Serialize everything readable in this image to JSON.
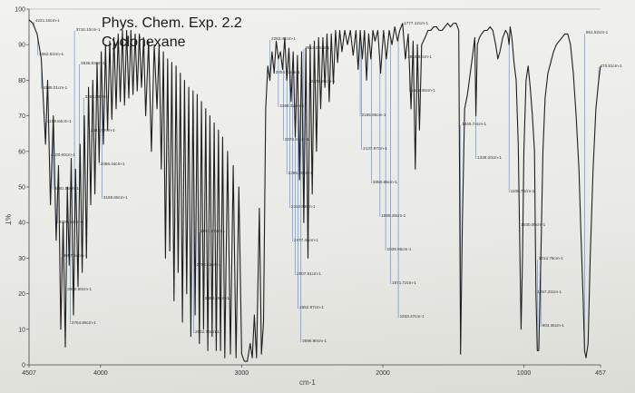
{
  "chart_data": {
    "type": "line",
    "title": "Phys. Chem. Exp. 2.2",
    "subtitle": "Cyclohexane",
    "xlabel": "cm-1",
    "ylabel": "%T",
    "xlim": [
      4507,
      457
    ],
    "ylim": [
      0,
      100
    ],
    "grid": false,
    "y_ticks": [
      "0",
      "10",
      "20",
      "30",
      "40",
      "50",
      "60",
      "70",
      "80",
      "90",
      "100"
    ],
    "x_ticks": [
      {
        "v": 4507,
        "label": "4507"
      },
      {
        "v": 4000,
        "label": "4000"
      },
      {
        "v": 3000,
        "label": "3000"
      },
      {
        "v": 2000,
        "label": "2000"
      },
      {
        "v": 1000,
        "label": "1000"
      },
      {
        "v": 457,
        "label": "457"
      }
    ],
    "series": [
      {
        "color": "#1f1f1f",
        "points": [
          [
            4507,
            97
          ],
          [
            4480,
            96
          ],
          [
            4450,
            93
          ],
          [
            4420,
            86
          ],
          [
            4390,
            62
          ],
          [
            4375,
            80
          ],
          [
            4355,
            45
          ],
          [
            4335,
            70
          ],
          [
            4315,
            35
          ],
          [
            4298,
            56
          ],
          [
            4282,
            10
          ],
          [
            4265,
            40
          ],
          [
            4250,
            5
          ],
          [
            4236,
            50
          ],
          [
            4222,
            28
          ],
          [
            4208,
            58
          ],
          [
            4192,
            14
          ],
          [
            4177,
            55
          ],
          [
            4160,
            22
          ],
          [
            4145,
            62
          ],
          [
            4130,
            26
          ],
          [
            4115,
            70
          ],
          [
            4100,
            30
          ],
          [
            4085,
            78
          ],
          [
            4070,
            45
          ],
          [
            4055,
            80
          ],
          [
            4040,
            48
          ],
          [
            4025,
            85
          ],
          [
            4010,
            57
          ],
          [
            3995,
            88
          ],
          [
            3980,
            62
          ],
          [
            3965,
            90
          ],
          [
            3950,
            66
          ],
          [
            3935,
            91
          ],
          [
            3920,
            69
          ],
          [
            3905,
            92
          ],
          [
            3890,
            72
          ],
          [
            3875,
            93
          ],
          [
            3860,
            74
          ],
          [
            3845,
            94
          ],
          [
            3830,
            73
          ],
          [
            3815,
            94
          ],
          [
            3800,
            75
          ],
          [
            3785,
            94
          ],
          [
            3770,
            76
          ],
          [
            3755,
            93
          ],
          [
            3740,
            77
          ],
          [
            3725,
            93
          ],
          [
            3710,
            78
          ],
          [
            3695,
            92
          ],
          [
            3680,
            70
          ],
          [
            3660,
            91
          ],
          [
            3640,
            60
          ],
          [
            3620,
            90
          ],
          [
            3600,
            72
          ],
          [
            3585,
            90
          ],
          [
            3570,
            55
          ],
          [
            3555,
            88
          ],
          [
            3540,
            30
          ],
          [
            3525,
            86
          ],
          [
            3510,
            32
          ],
          [
            3495,
            85
          ],
          [
            3480,
            18
          ],
          [
            3465,
            84
          ],
          [
            3450,
            26
          ],
          [
            3435,
            82
          ],
          [
            3420,
            12
          ],
          [
            3405,
            80
          ],
          [
            3390,
            20
          ],
          [
            3375,
            78
          ],
          [
            3360,
            8
          ],
          [
            3345,
            77
          ],
          [
            3330,
            14
          ],
          [
            3315,
            76
          ],
          [
            3300,
            6
          ],
          [
            3285,
            74
          ],
          [
            3270,
            10
          ],
          [
            3255,
            72
          ],
          [
            3240,
            4
          ],
          [
            3225,
            70
          ],
          [
            3210,
            8
          ],
          [
            3195,
            68
          ],
          [
            3180,
            4
          ],
          [
            3165,
            66
          ],
          [
            3150,
            4
          ],
          [
            3135,
            64
          ],
          [
            3120,
            2
          ],
          [
            3100,
            60
          ],
          [
            3080,
            3
          ],
          [
            3060,
            56
          ],
          [
            3040,
            2
          ],
          [
            3020,
            50
          ],
          [
            3000,
            3
          ],
          [
            2980,
            1
          ],
          [
            2960,
            1
          ],
          [
            2940,
            6
          ],
          [
            2925,
            2
          ],
          [
            2910,
            14
          ],
          [
            2895,
            2
          ],
          [
            2875,
            44
          ],
          [
            2860,
            3
          ],
          [
            2845,
            12
          ],
          [
            2830,
            72
          ],
          [
            2815,
            84
          ],
          [
            2800,
            80
          ],
          [
            2785,
            88
          ],
          [
            2770,
            82
          ],
          [
            2755,
            91
          ],
          [
            2740,
            86
          ],
          [
            2725,
            88
          ],
          [
            2710,
            83
          ],
          [
            2695,
            92
          ],
          [
            2680,
            80
          ],
          [
            2665,
            89
          ],
          [
            2650,
            74
          ],
          [
            2635,
            88
          ],
          [
            2620,
            64
          ],
          [
            2605,
            87
          ],
          [
            2590,
            52
          ],
          [
            2575,
            88
          ],
          [
            2560,
            40
          ],
          [
            2545,
            89
          ],
          [
            2530,
            30
          ],
          [
            2515,
            90
          ],
          [
            2500,
            48
          ],
          [
            2485,
            91
          ],
          [
            2470,
            60
          ],
          [
            2455,
            92
          ],
          [
            2440,
            72
          ],
          [
            2425,
            92
          ],
          [
            2410,
            78
          ],
          [
            2395,
            93
          ],
          [
            2380,
            74
          ],
          [
            2365,
            93
          ],
          [
            2350,
            79
          ],
          [
            2335,
            94
          ],
          [
            2320,
            85
          ],
          [
            2305,
            94
          ],
          [
            2290,
            88
          ],
          [
            2270,
            94
          ],
          [
            2250,
            90
          ],
          [
            2230,
            94
          ],
          [
            2210,
            87
          ],
          [
            2190,
            94
          ],
          [
            2175,
            83
          ],
          [
            2160,
            94
          ],
          [
            2145,
            86
          ],
          [
            2130,
            94
          ],
          [
            2115,
            80
          ],
          [
            2100,
            93
          ],
          [
            2085,
            86
          ],
          [
            2070,
            94
          ],
          [
            2055,
            91
          ],
          [
            2035,
            94
          ],
          [
            2015,
            82
          ],
          [
            1995,
            94
          ],
          [
            1975,
            86
          ],
          [
            1955,
            94
          ],
          [
            1935,
            90
          ],
          [
            1915,
            95
          ],
          [
            1895,
            91
          ],
          [
            1880,
            94
          ],
          [
            1860,
            96
          ],
          [
            1840,
            86
          ],
          [
            1820,
            93
          ],
          [
            1800,
            72
          ],
          [
            1785,
            91
          ],
          [
            1770,
            55
          ],
          [
            1755,
            90
          ],
          [
            1740,
            66
          ],
          [
            1725,
            90
          ],
          [
            1700,
            92
          ],
          [
            1680,
            94
          ],
          [
            1660,
            94
          ],
          [
            1640,
            95
          ],
          [
            1620,
            95
          ],
          [
            1600,
            94
          ],
          [
            1580,
            94
          ],
          [
            1560,
            95
          ],
          [
            1540,
            96
          ],
          [
            1520,
            95
          ],
          [
            1500,
            96
          ],
          [
            1480,
            96
          ],
          [
            1462,
            94
          ],
          [
            1449,
            3
          ],
          [
            1436,
            40
          ],
          [
            1420,
            72
          ],
          [
            1400,
            76
          ],
          [
            1380,
            82
          ],
          [
            1360,
            88
          ],
          [
            1348,
            92
          ],
          [
            1340,
            70
          ],
          [
            1330,
            90
          ],
          [
            1315,
            92
          ],
          [
            1300,
            93
          ],
          [
            1280,
            94
          ],
          [
            1260,
            94
          ],
          [
            1240,
            95
          ],
          [
            1220,
            94
          ],
          [
            1200,
            90
          ],
          [
            1185,
            86
          ],
          [
            1170,
            88
          ],
          [
            1150,
            92
          ],
          [
            1130,
            94
          ],
          [
            1115,
            93
          ],
          [
            1105,
            90
          ],
          [
            1097,
            95
          ],
          [
            1085,
            92
          ],
          [
            1070,
            85
          ],
          [
            1055,
            80
          ],
          [
            1040,
            62
          ],
          [
            1030,
            35
          ],
          [
            1020,
            10
          ],
          [
            1010,
            30
          ],
          [
            1000,
            60
          ],
          [
            985,
            80
          ],
          [
            970,
            84
          ],
          [
            955,
            78
          ],
          [
            940,
            70
          ],
          [
            925,
            60
          ],
          [
            915,
            20
          ],
          [
            905,
            4
          ],
          [
            895,
            4
          ],
          [
            880,
            30
          ],
          [
            865,
            60
          ],
          [
            850,
            75
          ],
          [
            830,
            82
          ],
          [
            810,
            85
          ],
          [
            790,
            88
          ],
          [
            770,
            90
          ],
          [
            750,
            91
          ],
          [
            730,
            92
          ],
          [
            710,
            93
          ],
          [
            690,
            93
          ],
          [
            670,
            90
          ],
          [
            650,
            82
          ],
          [
            630,
            70
          ],
          [
            610,
            55
          ],
          [
            595,
            36
          ],
          [
            580,
            18
          ],
          [
            570,
            4
          ],
          [
            560,
            2
          ],
          [
            545,
            6
          ],
          [
            530,
            30
          ],
          [
            510,
            55
          ],
          [
            490,
            72
          ],
          [
            470,
            80
          ],
          [
            457,
            84
          ]
        ]
      }
    ],
    "annotations": [
      {
        "x": 4472,
        "label": "4221.18cm-1"
      },
      {
        "x": 4445,
        "label": "4062.62cm-1"
      },
      {
        "x": 4418,
        "label": "4185.01cm-1"
      },
      {
        "x": 4390,
        "label": "4169.84cm-1"
      },
      {
        "x": 4362,
        "label": "4100.60cm-1"
      },
      {
        "x": 4335,
        "label": "4081.56cm-1"
      },
      {
        "x": 4305,
        "label": "4006.50cm-1"
      },
      {
        "x": 4275,
        "label": "3957.64cm-1"
      },
      {
        "x": 4245,
        "label": "3900.60cm-1"
      },
      {
        "x": 4215,
        "label": "3764.88cm-1"
      },
      {
        "x": 4185,
        "label": "3716.10cm-1"
      },
      {
        "x": 4150,
        "label": "3636.83cm-1"
      },
      {
        "x": 4120,
        "label": "3356.84cm-1"
      },
      {
        "x": 4080,
        "label": "3442.97cm-1"
      },
      {
        "x": 4010,
        "label": "3086.44cm-1"
      },
      {
        "x": 3990,
        "label": "3166.66cm-1"
      },
      {
        "x": 3300,
        "label": "2891.37cm-1"
      },
      {
        "x": 3330,
        "label": "2792.82cm-1"
      },
      {
        "x": 3270,
        "label": "2652.26cm-1"
      },
      {
        "x": 3340,
        "label": "2602.76cm-1"
      },
      {
        "x": 2800,
        "label": "2282.41cm-1"
      },
      {
        "x": 2770,
        "label": "2304.42cm-1"
      },
      {
        "x": 2740,
        "label": "2366.32cm-1"
      },
      {
        "x": 2705,
        "label": "2376.81cm-1"
      },
      {
        "x": 2680,
        "label": "2395.40cm-1"
      },
      {
        "x": 2660,
        "label": "2412.83cm-1"
      },
      {
        "x": 2640,
        "label": "2477.48cm-1"
      },
      {
        "x": 2620,
        "label": "2507.81cm-1"
      },
      {
        "x": 2600,
        "label": "2552.97cm-1"
      },
      {
        "x": 2580,
        "label": "2596.90cm-1"
      },
      {
        "x": 2560,
        "label": "2613.03cm-1"
      },
      {
        "x": 2520,
        "label": "2179.25cm-1"
      },
      {
        "x": 2160,
        "label": "2155.65cm-1"
      },
      {
        "x": 2150,
        "label": "2137.97cm-1"
      },
      {
        "x": 2080,
        "label": "2050.85cm-1"
      },
      {
        "x": 2020,
        "label": "1989.28cm-1"
      },
      {
        "x": 1980,
        "label": "1929.56cm-1"
      },
      {
        "x": 1945,
        "label": "1871.72cm-1"
      },
      {
        "x": 1890,
        "label": "1933.47cm-1"
      },
      {
        "x": 1860,
        "label": "1777.12cm-1"
      },
      {
        "x": 1835,
        "label": "1864.82cm-1"
      },
      {
        "x": 1810,
        "label": "1646.45cm-1"
      },
      {
        "x": 1449,
        "label": "1449.74cm-1"
      },
      {
        "x": 1340,
        "label": "1349.20cm-1"
      },
      {
        "x": 1105,
        "label": "1108.79cm-1"
      },
      {
        "x": 1030,
        "label": "1030.00cm-1"
      },
      {
        "x": 905,
        "label": "1014.76cm-1"
      },
      {
        "x": 915,
        "label": "1257.23cm-1"
      },
      {
        "x": 880,
        "label": "903.46cm-1"
      },
      {
        "x": 570,
        "label": "861.52cm-1"
      },
      {
        "x": 470,
        "label": "470.81cm-1"
      }
    ]
  }
}
